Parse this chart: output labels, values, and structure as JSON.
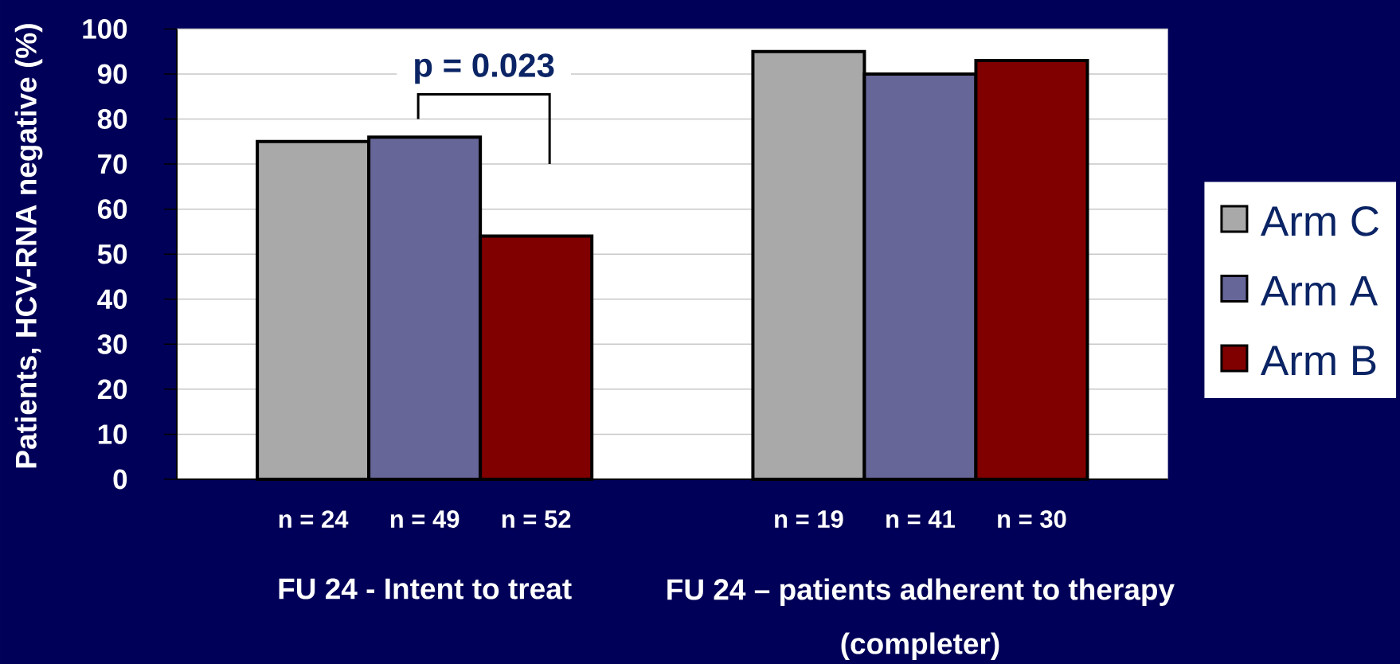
{
  "chart_data": {
    "type": "bar",
    "ylabel": "Patients, HCV-RNA negative (%)",
    "categories": [
      "FU 24 - Intent to treat",
      "FU 24 – patients adherent to therapy (completer)"
    ],
    "series": [
      {
        "name": "Arm C",
        "color": "#a9a9a9",
        "values": [
          75,
          95
        ]
      },
      {
        "name": "Arm A",
        "color": "#666699",
        "values": [
          76,
          90
        ]
      },
      {
        "name": "Arm B",
        "color": "#800000",
        "values": [
          54,
          93
        ]
      }
    ],
    "ylim": [
      0,
      100
    ],
    "yticks": [
      0,
      10,
      20,
      30,
      40,
      50,
      60,
      70,
      80,
      90,
      100
    ],
    "grid": "y",
    "legend": "right",
    "annotations": [
      "p = 0.023",
      "n = 24",
      "n = 49",
      "n = 52",
      "n = 19",
      "n = 41",
      "n = 30"
    ]
  }
}
